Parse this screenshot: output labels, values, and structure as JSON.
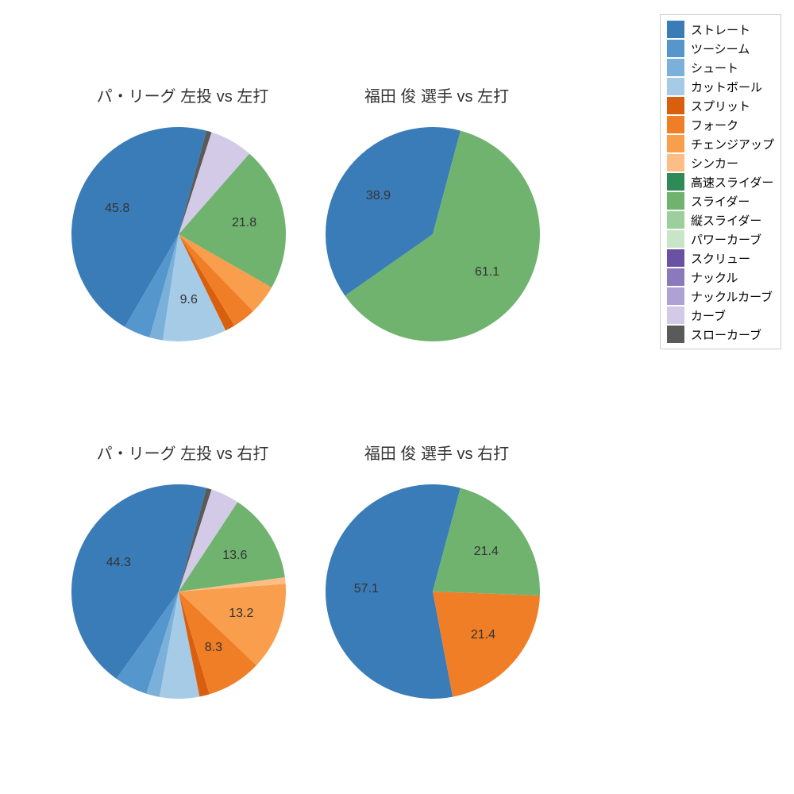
{
  "palette": {
    "straight": "#3a7cb8",
    "twoseam": "#5596cc",
    "shoot": "#7ab0da",
    "cutball": "#a6cbe6",
    "split": "#d95f0e",
    "fork": "#f07e26",
    "changeup": "#f99e4c",
    "sinker": "#fdbe85",
    "fast_slider": "#2e8b57",
    "slider": "#6fb36f",
    "v_slider": "#9ccf9c",
    "power_curve": "#c7e6c7",
    "screw": "#6a51a3",
    "knuckle": "#8b79bd",
    "knuckle_curve": "#aea1d3",
    "curve": "#d2cae6",
    "slow_curve": "#5a5a5a"
  },
  "legend_items": [
    {
      "key": "straight",
      "label": "ストレート"
    },
    {
      "key": "twoseam",
      "label": "ツーシーム"
    },
    {
      "key": "shoot",
      "label": "シュート"
    },
    {
      "key": "cutball",
      "label": "カットボール"
    },
    {
      "key": "split",
      "label": "スプリット"
    },
    {
      "key": "fork",
      "label": "フォーク"
    },
    {
      "key": "changeup",
      "label": "チェンジアップ"
    },
    {
      "key": "sinker",
      "label": "シンカー"
    },
    {
      "key": "fast_slider",
      "label": "高速スライダー"
    },
    {
      "key": "slider",
      "label": "スライダー"
    },
    {
      "key": "v_slider",
      "label": "縦スライダー"
    },
    {
      "key": "power_curve",
      "label": "パワーカーブ"
    },
    {
      "key": "screw",
      "label": "スクリュー"
    },
    {
      "key": "knuckle",
      "label": "ナックル"
    },
    {
      "key": "knuckle_curve",
      "label": "ナックルカーブ"
    },
    {
      "key": "curve",
      "label": "カーブ"
    },
    {
      "key": "slow_curve",
      "label": "スローカーブ"
    }
  ],
  "chart_style": {
    "radius": 135,
    "start_angle_deg": 75,
    "direction": "ccw",
    "label_threshold": 6.5,
    "label_radius_factor": 0.62,
    "label_fontsize": 16,
    "title_fontsize": 20,
    "background_color": "#ffffff",
    "text_color": "#333333"
  },
  "charts": [
    {
      "id": "pie0",
      "title": "パ・リーグ 左投 vs 左打",
      "slices": [
        {
          "key": "straight",
          "value": 45.8,
          "label": "45.8"
        },
        {
          "key": "twoseam",
          "value": 4.0
        },
        {
          "key": "shoot",
          "value": 2.0
        },
        {
          "key": "cutball",
          "value": 9.6,
          "label": "9.6"
        },
        {
          "key": "split",
          "value": 1.5
        },
        {
          "key": "fork",
          "value": 3.5
        },
        {
          "key": "changeup",
          "value": 4.5
        },
        {
          "key": "slider",
          "value": 21.8,
          "label": "21.8"
        },
        {
          "key": "curve",
          "value": 6.5
        },
        {
          "key": "slow_curve",
          "value": 0.8
        }
      ]
    },
    {
      "id": "pie1",
      "title": "福田 俊 選手 vs 左打",
      "slices": [
        {
          "key": "straight",
          "value": 38.9,
          "label": "38.9"
        },
        {
          "key": "slider",
          "value": 61.1,
          "label": "61.1"
        }
      ]
    },
    {
      "id": "pie2",
      "title": "パ・リーグ 左投 vs 右打",
      "slices": [
        {
          "key": "straight",
          "value": 44.3,
          "label": "44.3"
        },
        {
          "key": "twoseam",
          "value": 5.0
        },
        {
          "key": "shoot",
          "value": 2.0
        },
        {
          "key": "cutball",
          "value": 6.0
        },
        {
          "key": "split",
          "value": 1.5
        },
        {
          "key": "fork",
          "value": 8.3,
          "label": "8.3"
        },
        {
          "key": "changeup",
          "value": 13.2,
          "label": "13.2"
        },
        {
          "key": "sinker",
          "value": 1.0
        },
        {
          "key": "slider",
          "value": 13.6,
          "label": "13.6"
        },
        {
          "key": "curve",
          "value": 4.3
        },
        {
          "key": "slow_curve",
          "value": 0.8
        }
      ]
    },
    {
      "id": "pie3",
      "title": "福田 俊 選手 vs 右打",
      "slices": [
        {
          "key": "straight",
          "value": 57.1,
          "label": "57.1"
        },
        {
          "key": "fork",
          "value": 21.4,
          "label": "21.4"
        },
        {
          "key": "slider",
          "value": 21.4,
          "label": "21.4"
        }
      ]
    }
  ]
}
